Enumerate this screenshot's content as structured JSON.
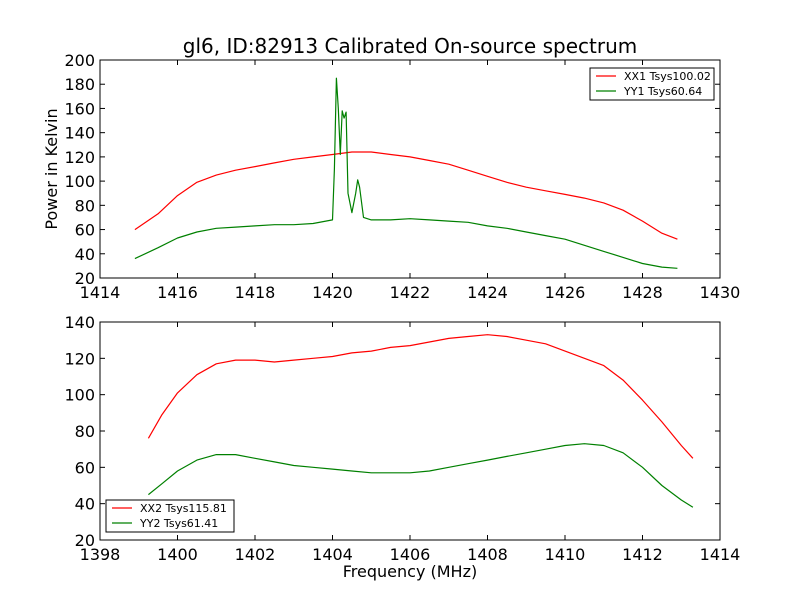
{
  "title": "gl6, ID:82913 Calibrated On-source spectrum",
  "xlabel": "Frequency (MHz)",
  "ylabel_top": "Power in Kelvin",
  "chart_data": [
    {
      "type": "line",
      "title": "gl6, ID:82913 Calibrated On-source spectrum",
      "xlabel": "",
      "ylabel": "Power in Kelvin",
      "xlim": [
        1414,
        1430
      ],
      "ylim": [
        20,
        200
      ],
      "xticks": [
        1414,
        1416,
        1418,
        1420,
        1422,
        1424,
        1426,
        1428,
        1430
      ],
      "yticks": [
        20,
        40,
        60,
        80,
        100,
        120,
        140,
        160,
        180,
        200
      ],
      "legend": "top-right",
      "series": [
        {
          "name": "XX1 Tsys100.02",
          "color": "#ff0000",
          "x": [
            1414.9,
            1415.5,
            1416.0,
            1416.5,
            1417.0,
            1417.5,
            1418.0,
            1418.5,
            1419.0,
            1419.5,
            1420.0,
            1420.5,
            1421.0,
            1421.5,
            1422.0,
            1422.5,
            1423.0,
            1423.5,
            1424.0,
            1424.5,
            1425.0,
            1425.5,
            1426.0,
            1426.5,
            1427.0,
            1427.5,
            1428.0,
            1428.5,
            1428.9
          ],
          "y": [
            60,
            73,
            88,
            99,
            105,
            109,
            112,
            115,
            118,
            120,
            122,
            124,
            124,
            122,
            120,
            117,
            114,
            109,
            104,
            99,
            95,
            92,
            89,
            86,
            82,
            76,
            67,
            57,
            52
          ]
        },
        {
          "name": "YY1 Tsys60.64",
          "color": "#008000",
          "x": [
            1414.9,
            1415.5,
            1416.0,
            1416.5,
            1417.0,
            1417.5,
            1418.0,
            1418.5,
            1419.0,
            1419.5,
            1420.0,
            1420.05,
            1420.1,
            1420.15,
            1420.2,
            1420.25,
            1420.3,
            1420.35,
            1420.4,
            1420.5,
            1420.6,
            1420.65,
            1420.7,
            1420.8,
            1421.0,
            1421.5,
            1422.0,
            1422.5,
            1423.0,
            1423.5,
            1424.0,
            1424.5,
            1425.0,
            1425.5,
            1426.0,
            1426.5,
            1427.0,
            1427.5,
            1428.0,
            1428.5,
            1428.9
          ],
          "y": [
            36,
            45,
            53,
            58,
            61,
            62,
            63,
            64,
            64,
            65,
            68,
            110,
            185,
            160,
            122,
            158,
            152,
            157,
            90,
            74,
            90,
            101,
            95,
            70,
            68,
            68,
            69,
            68,
            67,
            66,
            63,
            61,
            58,
            55,
            52,
            47,
            42,
            37,
            32,
            29,
            28
          ]
        }
      ]
    },
    {
      "type": "line",
      "title": "",
      "xlabel": "Frequency (MHz)",
      "ylabel": "",
      "xlim": [
        1398,
        1414
      ],
      "ylim": [
        20,
        140
      ],
      "xticks": [
        1398,
        1400,
        1402,
        1404,
        1406,
        1408,
        1410,
        1412,
        1414
      ],
      "yticks": [
        20,
        40,
        60,
        80,
        100,
        120,
        140
      ],
      "legend": "bottom-left",
      "series": [
        {
          "name": "XX2 Tsys115.81",
          "color": "#ff0000",
          "x": [
            1399.25,
            1399.6,
            1400.0,
            1400.5,
            1401.0,
            1401.5,
            1402.0,
            1402.5,
            1403.0,
            1403.5,
            1404.0,
            1404.5,
            1405.0,
            1405.5,
            1406.0,
            1406.5,
            1407.0,
            1407.5,
            1408.0,
            1408.5,
            1409.0,
            1409.5,
            1410.0,
            1410.5,
            1411.0,
            1411.5,
            1412.0,
            1412.5,
            1413.0,
            1413.3
          ],
          "y": [
            76,
            89,
            101,
            111,
            117,
            119,
            119,
            118,
            119,
            120,
            121,
            123,
            124,
            126,
            127,
            129,
            131,
            132,
            133,
            132,
            130,
            128,
            124,
            120,
            116,
            108,
            97,
            85,
            72,
            65
          ]
        },
        {
          "name": "YY2 Tsys61.41",
          "color": "#008000",
          "x": [
            1399.25,
            1399.6,
            1400.0,
            1400.5,
            1401.0,
            1401.5,
            1402.0,
            1402.5,
            1403.0,
            1403.5,
            1404.0,
            1404.5,
            1405.0,
            1405.5,
            1406.0,
            1406.5,
            1407.0,
            1407.5,
            1408.0,
            1408.5,
            1409.0,
            1409.5,
            1410.0,
            1410.5,
            1411.0,
            1411.5,
            1412.0,
            1412.5,
            1413.0,
            1413.3
          ],
          "y": [
            45,
            51,
            58,
            64,
            67,
            67,
            65,
            63,
            61,
            60,
            59,
            58,
            57,
            57,
            57,
            58,
            60,
            62,
            64,
            66,
            68,
            70,
            72,
            73,
            72,
            68,
            60,
            50,
            42,
            38
          ]
        }
      ]
    }
  ]
}
